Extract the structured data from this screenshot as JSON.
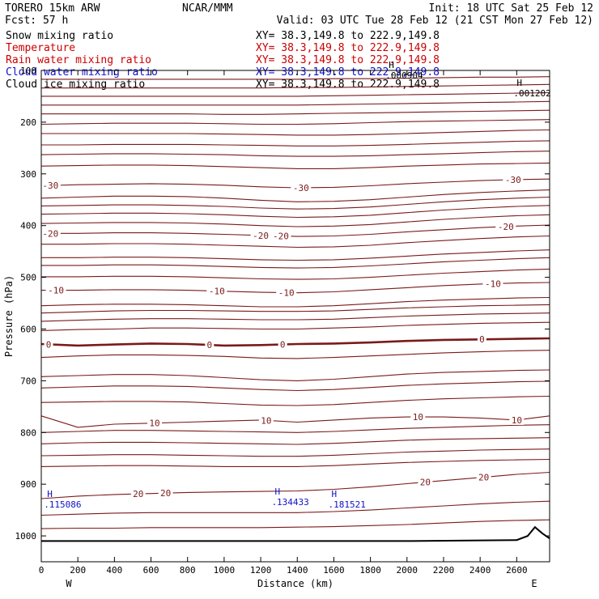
{
  "header": {
    "model": "TORERO  15km ARW",
    "org": "NCAR/MMM",
    "init": "Init: 18 UTC Sat 25 Feb 12",
    "fcst": "Fcst:   57 h",
    "valid": "Valid: 03 UTC Tue 28 Feb 12 (21 CST Mon 27 Feb 12)"
  },
  "fields": [
    {
      "name": "Snow mixing ratio",
      "xy": "XY=  38.3,149.8 to 222.9,149.8",
      "color": "#000000"
    },
    {
      "name": "Temperature",
      "xy": "XY=  38.3,149.8 to 222.9,149.8",
      "color": "#cc0000"
    },
    {
      "name": "Rain water mixing ratio",
      "xy": "XY=  38.3,149.8 to 222.9,149.8",
      "color": "#cc0000"
    },
    {
      "name": "Cloud water mixing ratio",
      "xy": "XY=  38.3,149.8 to 222.9,149.8",
      "color": "#1010c8"
    },
    {
      "name": "Cloud ice mixing ratio",
      "xy": "XY=  38.3,149.8 to 222.9,149.8",
      "color": "#000000"
    }
  ],
  "colors": {
    "isotherm": "#7a1a1a",
    "cloud_water": "#1010c8",
    "terrain": "#000000",
    "axis": "#000000"
  },
  "chart_data": {
    "type": "line",
    "xlabel": "Distance (km)",
    "ylabel": "Pressure (hPa)",
    "xlim": [
      0,
      2780
    ],
    "ylim": [
      1050,
      100
    ],
    "x_ticks": [
      0,
      200,
      400,
      600,
      800,
      1000,
      1200,
      1400,
      1600,
      1800,
      2000,
      2200,
      2400,
      2600
    ],
    "y_ticks": [
      100,
      200,
      300,
      400,
      500,
      600,
      700,
      800,
      900,
      1000
    ],
    "y_scale": "linear",
    "x_end_labels": {
      "left": "W",
      "right": "E"
    },
    "isotherm_levels": [
      -50,
      -48,
      -46,
      -44,
      -42,
      -40,
      -38,
      -36,
      -34,
      -32,
      -30,
      -28,
      -26,
      -24,
      -22,
      -20,
      -18,
      -16,
      -14,
      -12,
      -10,
      -8,
      -6,
      -4,
      -2,
      0,
      2,
      4,
      6,
      8,
      10,
      12,
      14,
      16,
      18,
      20,
      22,
      24
    ],
    "isotherm_x": [
      0,
      200,
      400,
      600,
      800,
      1000,
      1200,
      1400,
      1600,
      1800,
      2000,
      2200,
      2400,
      2600,
      2780
    ],
    "isotherms": [
      {
        "level": -50,
        "p": [
          117,
          117,
          117,
          117,
          117,
          117,
          117,
          117,
          116,
          116,
          115,
          114,
          113,
          113,
          112
        ]
      },
      {
        "level": -48,
        "p": [
          134,
          134,
          134,
          134,
          134,
          134,
          134,
          133,
          133,
          132,
          131,
          130,
          129,
          128,
          127
        ]
      },
      {
        "level": -46,
        "p": [
          150,
          150,
          150,
          150,
          150,
          150,
          150,
          150,
          149,
          148,
          147,
          146,
          145,
          144,
          143
        ]
      },
      {
        "level": -44,
        "p": [
          167,
          167,
          167,
          167,
          167,
          167,
          167,
          167,
          166,
          165,
          164,
          163,
          162,
          161,
          160
        ]
      },
      {
        "level": -42,
        "p": [
          184,
          184,
          184,
          184,
          184,
          185,
          185,
          184,
          183,
          182,
          181,
          180,
          179,
          178,
          177
        ]
      },
      {
        "level": -40,
        "p": [
          204,
          203,
          202,
          202,
          202,
          203,
          204,
          204,
          203,
          201,
          199,
          198,
          197,
          196,
          195
        ]
      },
      {
        "level": -38,
        "p": [
          222,
          222,
          222,
          222,
          222,
          223,
          224,
          225,
          225,
          224,
          222,
          220,
          218,
          216,
          215
        ]
      },
      {
        "level": -36,
        "p": [
          244,
          244,
          243,
          243,
          243,
          244,
          245,
          246,
          246,
          245,
          243,
          241,
          239,
          237,
          236
        ]
      },
      {
        "level": -34,
        "p": [
          263,
          262,
          261,
          261,
          262,
          263,
          265,
          266,
          266,
          265,
          263,
          261,
          259,
          257,
          256
        ]
      },
      {
        "level": -32,
        "p": [
          285,
          284,
          283,
          283,
          284,
          286,
          288,
          290,
          290,
          288,
          285,
          283,
          281,
          280,
          279
        ]
      },
      {
        "level": -30,
        "p": [
          323,
          321,
          320,
          319,
          320,
          322,
          325,
          327,
          326,
          323,
          319,
          316,
          313,
          311,
          310
        ]
      },
      {
        "level": -28,
        "p": [
          347,
          345,
          343,
          343,
          344,
          347,
          351,
          354,
          353,
          350,
          345,
          340,
          336,
          333,
          331
        ]
      },
      {
        "level": -26,
        "p": [
          362,
          361,
          360,
          360,
          361,
          363,
          366,
          368,
          367,
          364,
          359,
          354,
          350,
          347,
          345
        ]
      },
      {
        "level": -24,
        "p": [
          378,
          377,
          376,
          376,
          377,
          379,
          382,
          384,
          383,
          380,
          375,
          370,
          366,
          363,
          361
        ]
      },
      {
        "level": -22,
        "p": [
          396,
          395,
          394,
          394,
          395,
          397,
          400,
          402,
          401,
          398,
          393,
          388,
          384,
          381,
          379
        ]
      },
      {
        "level": -20,
        "p": [
          415,
          415,
          414,
          414,
          415,
          417,
          419,
          421,
          420,
          417,
          412,
          408,
          404,
          401,
          399
        ]
      },
      {
        "level": -18,
        "p": [
          436,
          436,
          435,
          435,
          436,
          438,
          440,
          442,
          441,
          438,
          433,
          429,
          425,
          422,
          420
        ]
      },
      {
        "level": -16,
        "p": [
          462,
          462,
          461,
          461,
          462,
          464,
          466,
          467,
          466,
          463,
          459,
          455,
          452,
          449,
          447
        ]
      },
      {
        "level": -14,
        "p": [
          477,
          477,
          476,
          476,
          477,
          479,
          481,
          482,
          481,
          478,
          474,
          470,
          467,
          464,
          462
        ]
      },
      {
        "level": -12,
        "p": [
          499,
          499,
          498,
          498,
          499,
          501,
          503,
          504,
          503,
          500,
          496,
          492,
          489,
          486,
          484
        ]
      },
      {
        "level": -10,
        "p": [
          525,
          525,
          524,
          524,
          525,
          527,
          529,
          530,
          528,
          524,
          520,
          516,
          513,
          511,
          510
        ]
      },
      {
        "level": -8,
        "p": [
          555,
          553,
          552,
          552,
          553,
          555,
          557,
          557,
          555,
          551,
          547,
          544,
          542,
          540,
          539
        ]
      },
      {
        "level": -6,
        "p": [
          569,
          567,
          565,
          564,
          564,
          565,
          566,
          566,
          565,
          562,
          559,
          557,
          555,
          554,
          553
        ]
      },
      {
        "level": -4,
        "p": [
          585,
          583,
          581,
          580,
          580,
          581,
          582,
          582,
          581,
          578,
          575,
          573,
          571,
          570,
          569
        ]
      },
      {
        "level": -2,
        "p": [
          603,
          601,
          600,
          598,
          598,
          599,
          600,
          600,
          598,
          596,
          593,
          591,
          589,
          588,
          587
        ]
      },
      {
        "level": 0,
        "p": [
          629,
          632,
          630,
          628,
          629,
          632,
          631,
          629,
          628,
          626,
          623,
          621,
          620,
          619,
          618
        ]
      },
      {
        "level": 2,
        "p": [
          655,
          652,
          650,
          650,
          651,
          653,
          656,
          657,
          655,
          652,
          649,
          646,
          644,
          642,
          641
        ]
      },
      {
        "level": 4,
        "p": [
          692,
          690,
          688,
          688,
          690,
          694,
          698,
          700,
          697,
          692,
          687,
          684,
          682,
          680,
          679
        ]
      },
      {
        "level": 6,
        "p": [
          714,
          712,
          710,
          710,
          711,
          714,
          717,
          719,
          717,
          713,
          709,
          706,
          704,
          702,
          701
        ]
      },
      {
        "level": 8,
        "p": [
          742,
          741,
          740,
          740,
          741,
          744,
          747,
          748,
          746,
          742,
          738,
          735,
          733,
          731,
          730
        ]
      },
      {
        "level": 10,
        "p": [
          768,
          790,
          784,
          782,
          780,
          778,
          776,
          780,
          776,
          772,
          770,
          770,
          772,
          776,
          768
        ]
      },
      {
        "level": 12,
        "p": [
          800,
          798,
          796,
          796,
          797,
          798,
          799,
          800,
          798,
          795,
          792,
          790,
          788,
          786,
          785
        ]
      },
      {
        "level": 14,
        "p": [
          822,
          820,
          819,
          819,
          820,
          821,
          822,
          823,
          821,
          818,
          815,
          813,
          812,
          811,
          810
        ]
      },
      {
        "level": 16,
        "p": [
          845,
          844,
          843,
          843,
          844,
          845,
          846,
          846,
          844,
          841,
          838,
          836,
          834,
          833,
          832
        ]
      },
      {
        "level": 18,
        "p": [
          866,
          865,
          864,
          864,
          865,
          866,
          866,
          866,
          864,
          861,
          858,
          856,
          854,
          853,
          852
        ]
      },
      {
        "level": 20,
        "p": [
          928,
          923,
          920,
          918,
          916,
          915,
          914,
          913,
          910,
          905,
          899,
          893,
          887,
          881,
          877
        ]
      },
      {
        "level": 22,
        "p": [
          960,
          958,
          956,
          955,
          955,
          955,
          955,
          955,
          953,
          950,
          946,
          942,
          938,
          935,
          933
        ]
      },
      {
        "level": 24,
        "p": [
          986,
          985,
          985,
          984,
          984,
          984,
          984,
          983,
          982,
          980,
          978,
          975,
          972,
          970,
          969
        ]
      }
    ],
    "contour_labels": [
      {
        "text": "-30",
        "x": [
          50,
          1420,
          2580
        ]
      },
      {
        "text": "-20",
        "x": [
          50,
          1200,
          1310,
          2540
        ]
      },
      {
        "text": "-10",
        "x": [
          80,
          960,
          1340,
          2470
        ]
      },
      {
        "text": "0",
        "x": [
          40,
          920,
          1320,
          2410
        ]
      },
      {
        "text": "10",
        "x": [
          620,
          1230,
          2060,
          2600
        ]
      },
      {
        "text": "20",
        "x": [
          530,
          680,
          2100,
          2420
        ]
      }
    ],
    "terrain": {
      "x": [
        0,
        2000,
        2600,
        2660,
        2700,
        2740,
        2780
      ],
      "p": [
        1010,
        1010,
        1008,
        1000,
        983,
        995,
        1005
      ]
    },
    "cloud_water_maxima": [
      {
        "label": "H",
        "value": ".115086",
        "x": 85,
        "p": 925
      },
      {
        "label": "H",
        "value": ".134433",
        "x": 1330,
        "p": 920
      },
      {
        "label": "H",
        "value": ".181521",
        "x": 1640,
        "p": 925
      }
    ],
    "cloud_ice_maxima": [
      {
        "label": "H",
        "value": ".001202",
        "x": 2600,
        "p": 130
      },
      {
        "label": "H",
        "value": ".000904",
        "x": 1900,
        "p": 95
      }
    ]
  }
}
